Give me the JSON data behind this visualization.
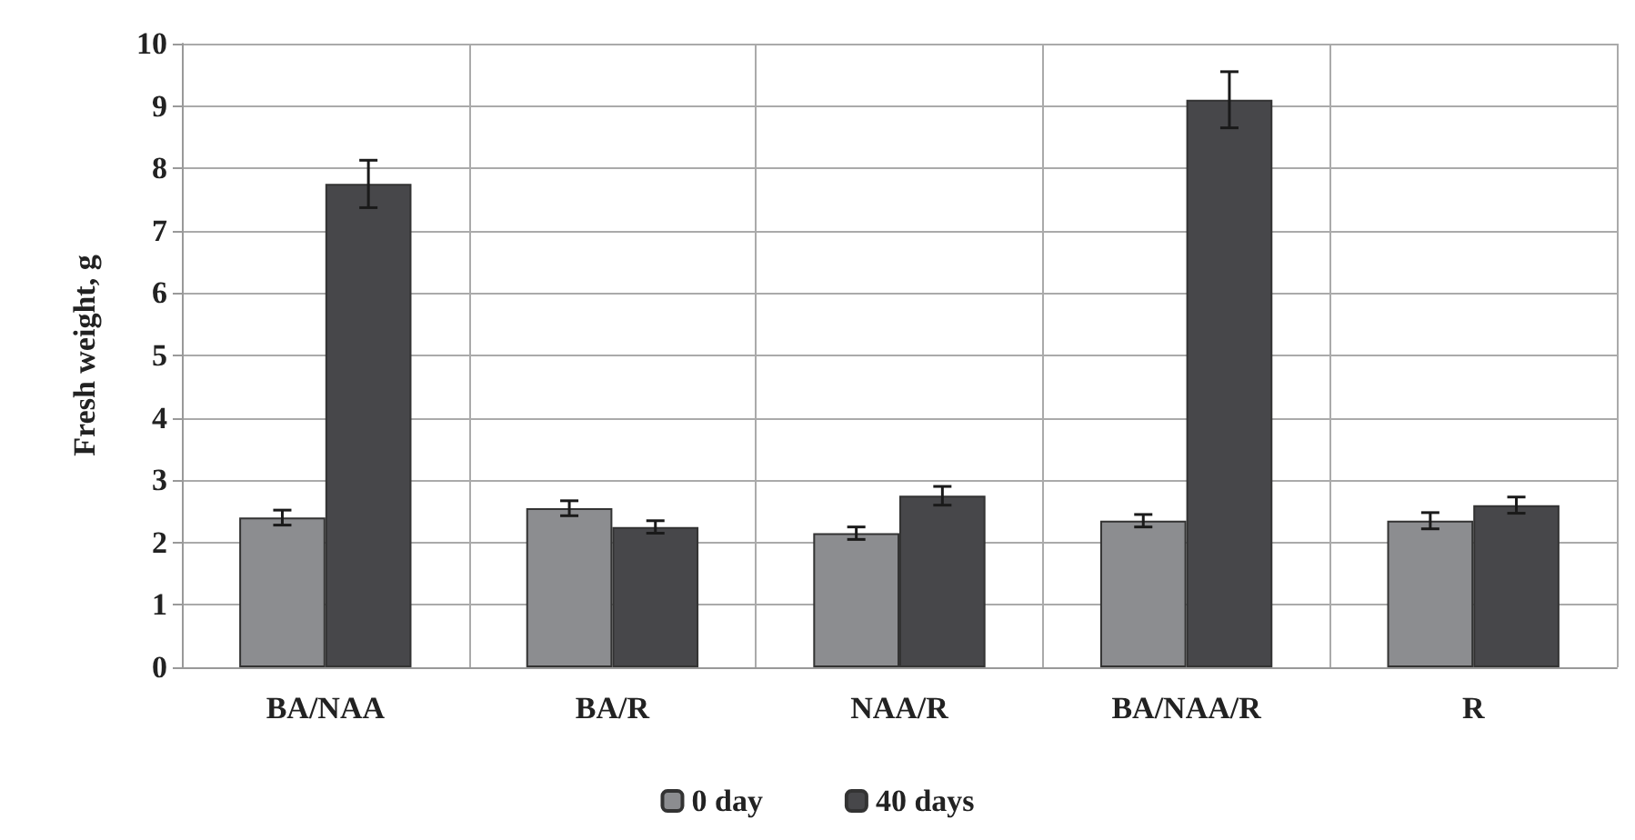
{
  "chart_data": {
    "type": "bar",
    "ylabel": "Fresh weight, g",
    "categories": [
      "BA/NAA",
      "BA/R",
      "NAA/R",
      "BA/NAA/R",
      "R"
    ],
    "series": [
      {
        "name": "0 day",
        "color": "#8c8d90",
        "values": [
          2.4,
          2.55,
          2.15,
          2.35,
          2.35
        ],
        "errors": [
          0.12,
          0.12,
          0.1,
          0.1,
          0.13
        ]
      },
      {
        "name": "40 days",
        "color": "#47474a",
        "values": [
          7.75,
          2.25,
          2.75,
          9.1,
          2.6
        ],
        "errors": [
          0.38,
          0.1,
          0.15,
          0.45,
          0.13
        ]
      }
    ],
    "ylim": [
      0,
      10
    ],
    "yticks": [
      0,
      1,
      2,
      3,
      4,
      5,
      6,
      7,
      8,
      9,
      10
    ],
    "grid": true,
    "legend": "bottom"
  }
}
